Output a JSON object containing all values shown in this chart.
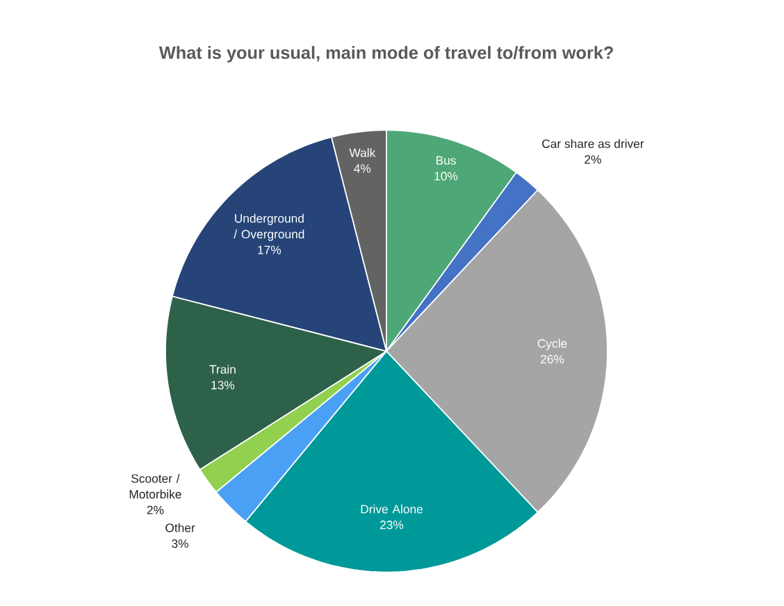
{
  "chart_data": {
    "type": "pie",
    "title": "What is your usual, main mode of travel to/from work?",
    "categories": [
      "Bus",
      "Car share as driver",
      "Cycle",
      "Drive Alone",
      "Other",
      "Scooter / Motorbike",
      "Train",
      "Underground / Overground",
      "Walk"
    ],
    "values": [
      10,
      2,
      26,
      23,
      3,
      2,
      13,
      17,
      4
    ],
    "value_labels": [
      "10%",
      "2%",
      "26%",
      "23%",
      "3%",
      "2%",
      "13%",
      "17%",
      "4%"
    ],
    "colors": [
      "#4ea777",
      "#4472c4",
      "#a5a5a5",
      "#009999",
      "#4aa0f5",
      "#92d050",
      "#2e614a",
      "#264478",
      "#636363"
    ]
  }
}
